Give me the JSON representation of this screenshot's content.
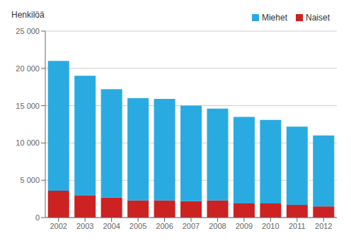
{
  "chart_data": {
    "type": "bar",
    "stacked": true,
    "ylabel": "Henkilöä",
    "categories": [
      "2002",
      "2003",
      "2004",
      "2005",
      "2006",
      "2007",
      "2008",
      "2009",
      "2010",
      "2011",
      "2012"
    ],
    "series": [
      {
        "name": "Naiset",
        "color": "#CC2222",
        "values": [
          3600,
          3000,
          2700,
          2300,
          2300,
          2200,
          2300,
          1900,
          1900,
          1700,
          1500
        ]
      },
      {
        "name": "Miehet",
        "color": "#29ABE2",
        "values": [
          17400,
          16000,
          14500,
          13700,
          13600,
          12800,
          12300,
          11600,
          11200,
          10500,
          9500
        ]
      }
    ],
    "ylim": [
      0,
      25000
    ],
    "yticks": [
      0,
      {
        "value": 5000,
        "label": "5 000"
      },
      {
        "value": 10000,
        "label": "10 000"
      },
      {
        "value": 15000,
        "label": "15 000"
      },
      {
        "value": 20000,
        "label": "20 000"
      },
      {
        "value": 25000,
        "label": "25 000"
      }
    ],
    "grid": true,
    "legend": "upper right"
  }
}
